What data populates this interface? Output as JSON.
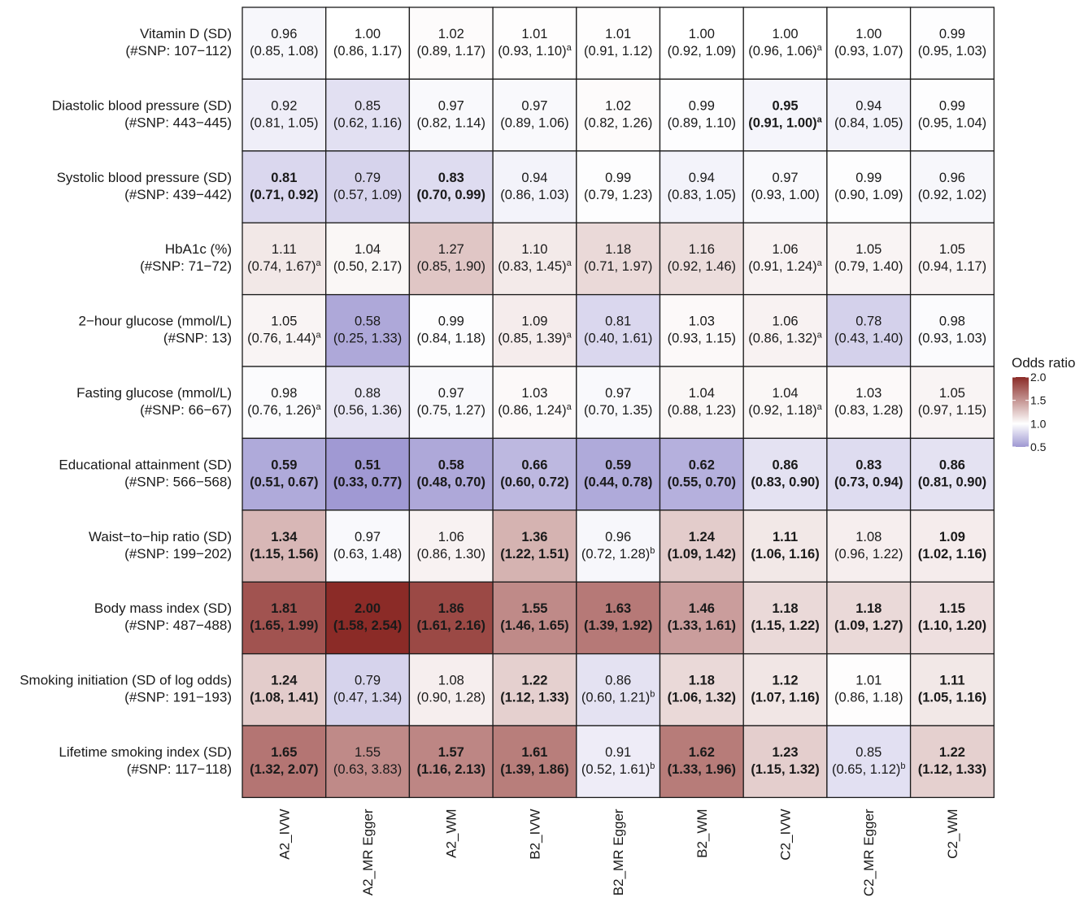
{
  "chart_data": {
    "type": "heatmap",
    "columns": [
      "A2_IVW",
      "A2_MR Egger",
      "A2_WM",
      "B2_IVW",
      "B2_MR Egger",
      "B2_WM",
      "C2_IVW",
      "C2_MR Egger",
      "C2_WM"
    ],
    "rows": [
      {
        "label": "Vitamin D (SD)",
        "snp": "(#SNP: 107−112)",
        "cells": [
          {
            "or": 0.96,
            "ci": "(0.85, 1.08)"
          },
          {
            "or": 1.0,
            "ci": "(0.86, 1.17)"
          },
          {
            "or": 1.02,
            "ci": "(0.89, 1.17)"
          },
          {
            "or": 1.01,
            "ci": "(0.93, 1.10)",
            "note": "a"
          },
          {
            "or": 1.01,
            "ci": "(0.91, 1.12)"
          },
          {
            "or": 1.0,
            "ci": "(0.92, 1.09)"
          },
          {
            "or": 1.0,
            "ci": "(0.96, 1.06)",
            "note": "a"
          },
          {
            "or": 1.0,
            "ci": "(0.93, 1.07)"
          },
          {
            "or": 0.99,
            "ci": "(0.95, 1.03)"
          }
        ]
      },
      {
        "label": "Diastolic blood pressure (SD)",
        "snp": "(#SNP: 443−445)",
        "cells": [
          {
            "or": 0.92,
            "ci": "(0.81, 1.05)"
          },
          {
            "or": 0.85,
            "ci": "(0.62, 1.16)"
          },
          {
            "or": 0.97,
            "ci": "(0.82, 1.14)"
          },
          {
            "or": 0.97,
            "ci": "(0.89, 1.06)"
          },
          {
            "or": 1.02,
            "ci": "(0.82, 1.26)"
          },
          {
            "or": 0.99,
            "ci": "(0.89, 1.10)"
          },
          {
            "or": 0.95,
            "ci": "(0.91, 1.00)",
            "note": "a",
            "bold": true
          },
          {
            "or": 0.94,
            "ci": "(0.84, 1.05)"
          },
          {
            "or": 0.99,
            "ci": "(0.95, 1.04)"
          }
        ]
      },
      {
        "label": "Systolic blood pressure (SD)",
        "snp": "(#SNP: 439−442)",
        "cells": [
          {
            "or": 0.81,
            "ci": "(0.71, 0.92)",
            "bold": true
          },
          {
            "or": 0.79,
            "ci": "(0.57, 1.09)"
          },
          {
            "or": 0.83,
            "ci": "(0.70, 0.99)",
            "bold": true
          },
          {
            "or": 0.94,
            "ci": "(0.86, 1.03)"
          },
          {
            "or": 0.99,
            "ci": "(0.79, 1.23)"
          },
          {
            "or": 0.94,
            "ci": "(0.83, 1.05)"
          },
          {
            "or": 0.97,
            "ci": "(0.93, 1.00)"
          },
          {
            "or": 0.99,
            "ci": "(0.90, 1.09)"
          },
          {
            "or": 0.96,
            "ci": "(0.92, 1.02)"
          }
        ]
      },
      {
        "label": "HbA1c (%)",
        "snp": "(#SNP: 71−72)",
        "cells": [
          {
            "or": 1.11,
            "ci": "(0.74, 1.67)",
            "note": "a"
          },
          {
            "or": 1.04,
            "ci": "(0.50, 2.17)"
          },
          {
            "or": 1.27,
            "ci": "(0.85, 1.90)"
          },
          {
            "or": 1.1,
            "ci": "(0.83, 1.45)",
            "note": "a"
          },
          {
            "or": 1.18,
            "ci": "(0.71, 1.97)"
          },
          {
            "or": 1.16,
            "ci": "(0.92, 1.46)"
          },
          {
            "or": 1.06,
            "ci": "(0.91, 1.24)",
            "note": "a"
          },
          {
            "or": 1.05,
            "ci": "(0.79, 1.40)"
          },
          {
            "or": 1.05,
            "ci": "(0.94, 1.17)"
          }
        ]
      },
      {
        "label": "2−hour glucose (mmol/L)",
        "snp": "(#SNP: 13)",
        "cells": [
          {
            "or": 1.05,
            "ci": "(0.76, 1.44)",
            "note": "a"
          },
          {
            "or": 0.58,
            "ci": "(0.25, 1.33)"
          },
          {
            "or": 0.99,
            "ci": "(0.84, 1.18)"
          },
          {
            "or": 1.09,
            "ci": "(0.85, 1.39)",
            "note": "a"
          },
          {
            "or": 0.81,
            "ci": "(0.40, 1.61)"
          },
          {
            "or": 1.03,
            "ci": "(0.93, 1.15)"
          },
          {
            "or": 1.06,
            "ci": "(0.86, 1.32)",
            "note": "a"
          },
          {
            "or": 0.78,
            "ci": "(0.43, 1.40)"
          },
          {
            "or": 0.98,
            "ci": "(0.93, 1.03)"
          }
        ]
      },
      {
        "label": "Fasting glucose (mmol/L)",
        "snp": "(#SNP: 66−67)",
        "cells": [
          {
            "or": 0.98,
            "ci": "(0.76, 1.26)",
            "note": "a"
          },
          {
            "or": 0.88,
            "ci": "(0.56, 1.36)"
          },
          {
            "or": 0.97,
            "ci": "(0.75, 1.27)"
          },
          {
            "or": 1.03,
            "ci": "(0.86, 1.24)",
            "note": "a"
          },
          {
            "or": 0.97,
            "ci": "(0.70, 1.35)"
          },
          {
            "or": 1.04,
            "ci": "(0.88, 1.23)"
          },
          {
            "or": 1.04,
            "ci": "(0.92, 1.18)",
            "note": "a"
          },
          {
            "or": 1.03,
            "ci": "(0.83, 1.28)"
          },
          {
            "or": 1.05,
            "ci": "(0.97, 1.15)"
          }
        ]
      },
      {
        "label": "Educational attainment (SD)",
        "snp": "(#SNP: 566−568)",
        "cells": [
          {
            "or": 0.59,
            "ci": "(0.51, 0.67)",
            "bold": true
          },
          {
            "or": 0.51,
            "ci": "(0.33, 0.77)",
            "bold": true
          },
          {
            "or": 0.58,
            "ci": "(0.48, 0.70)",
            "bold": true
          },
          {
            "or": 0.66,
            "ci": "(0.60, 0.72)",
            "bold": true
          },
          {
            "or": 0.59,
            "ci": "(0.44, 0.78)",
            "bold": true
          },
          {
            "or": 0.62,
            "ci": "(0.55, 0.70)",
            "bold": true
          },
          {
            "or": 0.86,
            "ci": "(0.83, 0.90)",
            "bold": true
          },
          {
            "or": 0.83,
            "ci": "(0.73, 0.94)",
            "bold": true
          },
          {
            "or": 0.86,
            "ci": "(0.81, 0.90)",
            "bold": true
          }
        ]
      },
      {
        "label": "Waist−to−hip ratio (SD)",
        "snp": "(#SNP: 199−202)",
        "cells": [
          {
            "or": 1.34,
            "ci": "(1.15, 1.56)",
            "bold": true
          },
          {
            "or": 0.97,
            "ci": "(0.63, 1.48)"
          },
          {
            "or": 1.06,
            "ci": "(0.86, 1.30)"
          },
          {
            "or": 1.36,
            "ci": "(1.22, 1.51)",
            "bold": true
          },
          {
            "or": 0.96,
            "ci": "(0.72, 1.28)",
            "note": "b"
          },
          {
            "or": 1.24,
            "ci": "(1.09, 1.42)",
            "bold": true
          },
          {
            "or": 1.11,
            "ci": "(1.06, 1.16)",
            "bold": true
          },
          {
            "or": 1.08,
            "ci": "(0.96, 1.22)"
          },
          {
            "or": 1.09,
            "ci": "(1.02, 1.16)",
            "bold": true
          }
        ]
      },
      {
        "label": "Body mass index (SD)",
        "snp": "(#SNP: 487−488)",
        "cells": [
          {
            "or": 1.81,
            "ci": "(1.65, 1.99)",
            "bold": true
          },
          {
            "or": 2.0,
            "ci": "(1.58, 2.54)",
            "bold": true
          },
          {
            "or": 1.86,
            "ci": "(1.61, 2.16)",
            "bold": true
          },
          {
            "or": 1.55,
            "ci": "(1.46, 1.65)",
            "bold": true
          },
          {
            "or": 1.63,
            "ci": "(1.39, 1.92)",
            "bold": true
          },
          {
            "or": 1.46,
            "ci": "(1.33, 1.61)",
            "bold": true
          },
          {
            "or": 1.18,
            "ci": "(1.15, 1.22)",
            "bold": true
          },
          {
            "or": 1.18,
            "ci": "(1.09, 1.27)",
            "bold": true
          },
          {
            "or": 1.15,
            "ci": "(1.10, 1.20)",
            "bold": true
          }
        ]
      },
      {
        "label": "Smoking initiation (SD of log odds)",
        "snp": "(#SNP: 191−193)",
        "cells": [
          {
            "or": 1.24,
            "ci": "(1.08, 1.41)",
            "bold": true
          },
          {
            "or": 0.79,
            "ci": "(0.47, 1.34)"
          },
          {
            "or": 1.08,
            "ci": "(0.90, 1.28)"
          },
          {
            "or": 1.22,
            "ci": "(1.12, 1.33)",
            "bold": true
          },
          {
            "or": 0.86,
            "ci": "(0.60, 1.21)",
            "note": "b"
          },
          {
            "or": 1.18,
            "ci": "(1.06, 1.32)",
            "bold": true
          },
          {
            "or": 1.12,
            "ci": "(1.07, 1.16)",
            "bold": true
          },
          {
            "or": 1.01,
            "ci": "(0.86, 1.18)"
          },
          {
            "or": 1.11,
            "ci": "(1.05, 1.16)",
            "bold": true
          }
        ]
      },
      {
        "label": "Lifetime smoking index (SD)",
        "snp": "(#SNP: 117−118)",
        "cells": [
          {
            "or": 1.65,
            "ci": "(1.32, 2.07)",
            "bold": true
          },
          {
            "or": 1.55,
            "ci": "(0.63, 3.83)"
          },
          {
            "or": 1.57,
            "ci": "(1.16, 2.13)",
            "bold": true
          },
          {
            "or": 1.61,
            "ci": "(1.39, 1.86)",
            "bold": true
          },
          {
            "or": 0.91,
            "ci": "(0.52, 1.61)",
            "note": "b"
          },
          {
            "or": 1.62,
            "ci": "(1.33, 1.96)",
            "bold": true
          },
          {
            "or": 1.23,
            "ci": "(1.15, 1.32)",
            "bold": true
          },
          {
            "or": 0.85,
            "ci": "(0.65, 1.12)",
            "note": "b"
          },
          {
            "or": 1.22,
            "ci": "(1.12, 1.33)",
            "bold": true
          }
        ]
      }
    ],
    "legend": {
      "title": "Odds ratio",
      "ticks": [
        2.0,
        1.5,
        1.0,
        0.5
      ],
      "tick_labels": [
        "2.0",
        "1.5",
        "1.0",
        "0.5"
      ],
      "range": [
        0.5,
        2.0
      ],
      "low_color": "#9e97d2",
      "mid_color": "#ffffff",
      "high_color": "#8b2b27"
    }
  }
}
